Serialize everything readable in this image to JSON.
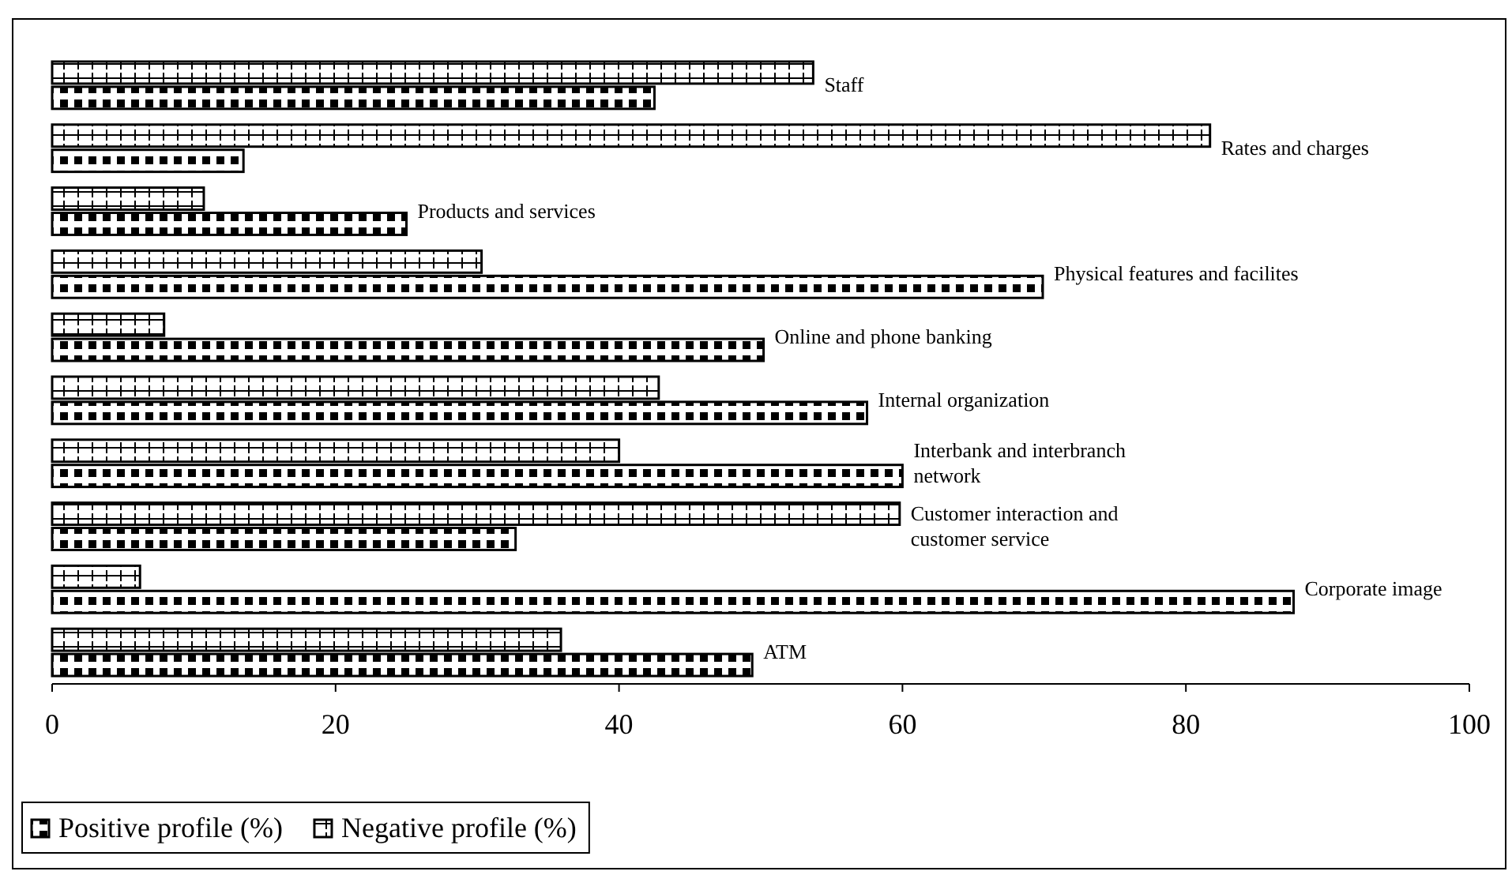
{
  "chart_data": {
    "type": "bar",
    "orientation": "horizontal",
    "categories": [
      "Staff",
      "Rates and charges",
      "Products and services",
      "Physical features and facilites",
      "Online and phone banking",
      "Internal organization",
      "Interbank and interbranch network",
      "Customer interaction and customer service",
      "Corporate image",
      "ATM"
    ],
    "series": [
      {
        "name": "Positive profile (%)",
        "color": "#000000",
        "values": [
          42.5,
          13.5,
          25,
          69.9,
          50.2,
          57.5,
          60,
          32.7,
          87.6,
          49.4
        ]
      },
      {
        "name": "Negative profile (%)",
        "color": "#000000",
        "values": [
          53.7,
          81.7,
          10.7,
          30.3,
          7.9,
          42.8,
          40,
          59.8,
          6.2,
          35.9
        ]
      }
    ],
    "xlim": [
      0,
      100
    ],
    "xticks": [
      0,
      20,
      40,
      60,
      80,
      100
    ],
    "legend": "bottom left",
    "grid": false
  }
}
